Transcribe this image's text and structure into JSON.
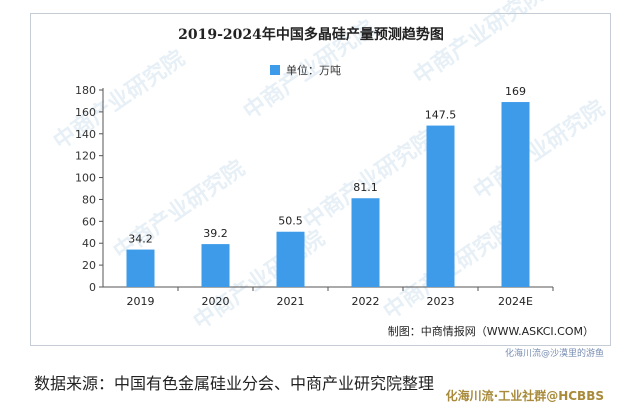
{
  "chart_data": {
    "type": "bar",
    "title": "2019-2024年中国多晶硅产量预测趋势图",
    "legend": "单位：万吨",
    "categories": [
      "2019",
      "2020",
      "2021",
      "2022",
      "2023",
      "2024E"
    ],
    "values": [
      34.2,
      39.2,
      50.5,
      81.1,
      147.5,
      169
    ],
    "value_labels": [
      "34.2",
      "39.2",
      "50.5",
      "81.1",
      "147.5",
      "169"
    ],
    "ylim": [
      0,
      180
    ],
    "yticks": [
      0,
      20,
      40,
      60,
      80,
      100,
      120,
      140,
      160,
      180
    ],
    "grid": false,
    "legend_position": "top-center",
    "bar_color": "#3d9be9"
  },
  "credit": "制图：中商情报网（WWW.ASKCI.COM）",
  "source_note": "数据来源：中国有色金属硅业分会、中商产业研究院整理",
  "watermark": {
    "background_text": "中商产业研究院",
    "corner_top": "化海川流@沙漠里的游鱼",
    "corner_bottom": "化海川流·工业社群@HCBBS"
  }
}
